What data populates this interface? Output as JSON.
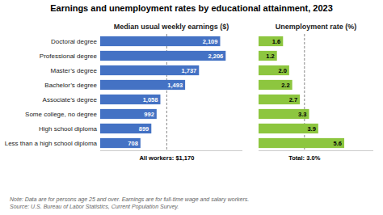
{
  "chart_data": [
    {
      "type": "bar",
      "orientation": "horizontal",
      "title": "Earnings and unemployment rates by educational attainment, 2023",
      "subtitle": "Median usual weekly earnings ($)",
      "categories": [
        "Doctoral degree",
        "Professional degree",
        "Master’s degree",
        "Bachelor’s degree",
        "Associate’s degree",
        "Some college, no degree",
        "High school diploma",
        "Less than a high school diploma"
      ],
      "values": [
        2109,
        2206,
        1737,
        1493,
        1058,
        992,
        899,
        708
      ],
      "value_labels": [
        "2,109",
        "2,206",
        "1,737",
        "1,493",
        "1,058",
        "992",
        "899",
        "708"
      ],
      "data_labels": true,
      "color": "#4472C4",
      "xlim": [
        0,
        2500
      ],
      "tick_labels": "y",
      "grid": false,
      "annotations": [
        {
          "text": "All workers: $1,170",
          "value": 1170
        }
      ],
      "note": "Note: Data are for persons age 25 and over. Earnings are for full-time wage and salary workers.\nSource: U.S. Bureau of Labor Statistics, Current Population Survey."
    },
    {
      "type": "bar",
      "orientation": "horizontal",
      "subtitle": "Unemployment rate (%)",
      "categories": [
        "Doctoral degree",
        "Professional degree",
        "Master’s degree",
        "Bachelor’s degree",
        "Associate’s degree",
        "Some college, no degree",
        "High school diploma",
        "Less than a high school diploma"
      ],
      "values": [
        1.6,
        1.2,
        2.0,
        2.2,
        2.7,
        3.3,
        3.9,
        5.6
      ],
      "value_labels": [
        "1.6",
        "1.2",
        "2.0",
        "2.2",
        "2.7",
        "3.3",
        "3.9",
        "5.6"
      ],
      "data_labels": true,
      "color": "#8DC63F",
      "xlim": [
        0,
        7.5
      ],
      "tick_labels": false,
      "grid": false,
      "annotations": [
        {
          "text": "Total: 3.0%",
          "value": 3.0
        }
      ]
    }
  ]
}
